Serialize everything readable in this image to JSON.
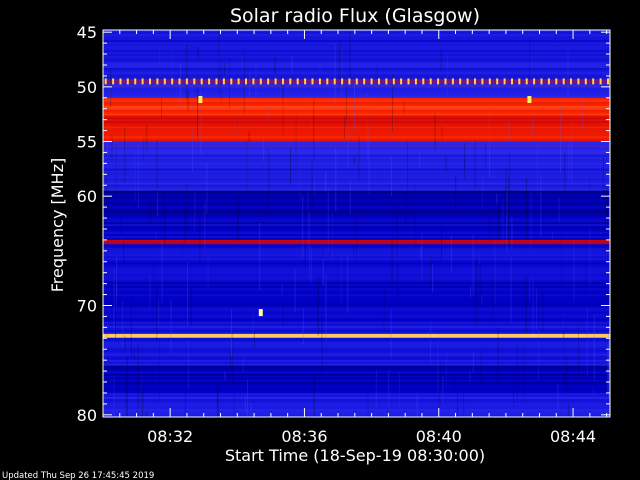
{
  "footer": {
    "updated": "Updated Thu Sep 26 17:45:45 2019"
  },
  "chart_data": {
    "type": "heatmap",
    "title": "Solar radio Flux (Glasgow)",
    "xlabel": "Start Time (18-Sep-19 08:30:00)",
    "ylabel": "Frequency [MHz]",
    "x_tick_labels": [
      "08:32",
      "08:36",
      "08:40",
      "08:44"
    ],
    "x_ticks_minutes": [
      2,
      6,
      10,
      14
    ],
    "xlim_minutes": [
      0,
      15.1
    ],
    "y_tick_labels": [
      "45",
      "50",
      "55",
      "60",
      "70",
      "80"
    ],
    "y_ticks_mhz": [
      45,
      50,
      55,
      60,
      70,
      80
    ],
    "ylim_mhz": [
      80.2,
      44.8
    ],
    "colormap": [
      "#000012",
      "#0000c8",
      "#2a2af0",
      "#c8000a",
      "#ff2800",
      "#ffff80"
    ],
    "intensity_bands": [
      {
        "from_mhz": 44.8,
        "to_mhz": 45.0,
        "level": 0.3
      },
      {
        "from_mhz": 45.0,
        "to_mhz": 47.0,
        "level": 0.28
      },
      {
        "from_mhz": 47.0,
        "to_mhz": 49.3,
        "level": 0.32
      },
      {
        "from_mhz": 49.3,
        "to_mhz": 49.7,
        "level": 0.45
      },
      {
        "from_mhz": 49.7,
        "to_mhz": 51.0,
        "level": 0.38
      },
      {
        "from_mhz": 51.0,
        "to_mhz": 52.6,
        "level": 0.78
      },
      {
        "from_mhz": 52.6,
        "to_mhz": 53.6,
        "level": 0.68
      },
      {
        "from_mhz": 53.6,
        "to_mhz": 55.0,
        "level": 0.74
      },
      {
        "from_mhz": 55.0,
        "to_mhz": 56.2,
        "level": 0.42
      },
      {
        "from_mhz": 56.2,
        "to_mhz": 59.5,
        "level": 0.34
      },
      {
        "from_mhz": 59.5,
        "to_mhz": 62.0,
        "level": 0.16
      },
      {
        "from_mhz": 62.0,
        "to_mhz": 64.0,
        "level": 0.22
      },
      {
        "from_mhz": 64.0,
        "to_mhz": 64.4,
        "level": 0.58
      },
      {
        "from_mhz": 64.4,
        "to_mhz": 67.5,
        "level": 0.26
      },
      {
        "from_mhz": 67.5,
        "to_mhz": 71.5,
        "level": 0.22
      },
      {
        "from_mhz": 71.5,
        "to_mhz": 72.6,
        "level": 0.3
      },
      {
        "from_mhz": 72.6,
        "to_mhz": 72.95,
        "level": 1.0
      },
      {
        "from_mhz": 72.95,
        "to_mhz": 75.5,
        "level": 0.3
      },
      {
        "from_mhz": 75.5,
        "to_mhz": 78.0,
        "level": 0.18
      },
      {
        "from_mhz": 78.0,
        "to_mhz": 80.2,
        "level": 0.34
      }
    ],
    "periodic_spikes": {
      "freq_mhz": 49.5,
      "interval_minutes": 0.22,
      "color": "#ffd24a"
    },
    "bright_spots": [
      {
        "time_minutes": 2.9,
        "freq_mhz": 51.2,
        "color": "#ffee66"
      },
      {
        "time_minutes": 12.7,
        "freq_mhz": 51.2,
        "color": "#ffee66"
      },
      {
        "time_minutes": 4.7,
        "freq_mhz": 70.7,
        "color": "#ffffa0"
      }
    ]
  }
}
